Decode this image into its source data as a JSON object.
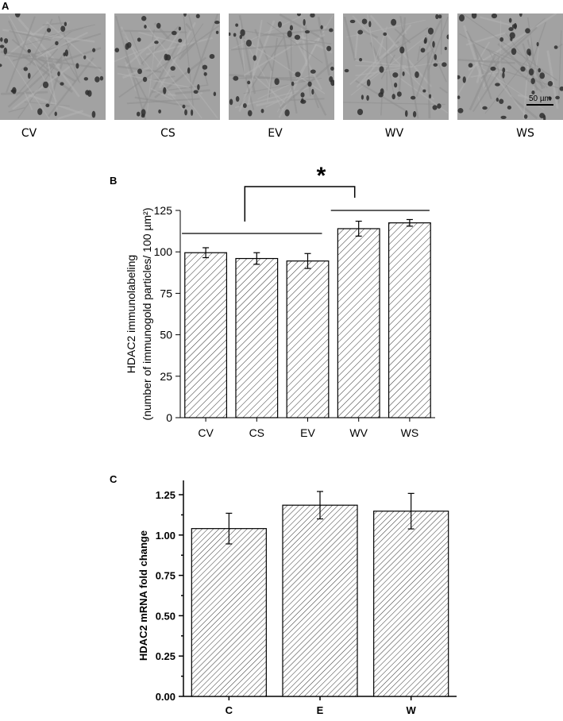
{
  "panels": {
    "a": {
      "letter": "A",
      "images": [
        {
          "label": "CV"
        },
        {
          "label": "CS"
        },
        {
          "label": "EV"
        },
        {
          "label": "WV"
        },
        {
          "label": "WS"
        }
      ],
      "scale_bar": "50 µm"
    },
    "b": {
      "letter": "B",
      "significance": "*"
    },
    "c": {
      "letter": "C"
    }
  },
  "chart_data": [
    {
      "type": "bar",
      "categories": [
        "CV",
        "CS",
        "EV",
        "WV",
        "WS"
      ],
      "values": [
        99.5,
        96,
        94.5,
        114,
        117.5
      ],
      "errors": [
        3,
        3.5,
        4.5,
        4.5,
        2
      ],
      "ylabel": "HDAC2 immunolabeling",
      "ylabel2": "(number of immunogold particles/ 100 µm²)",
      "ylim": [
        0,
        125
      ],
      "yticks": [
        "0",
        "25",
        "50",
        "75",
        "100",
        "125"
      ],
      "yticks_values": [
        0,
        25,
        50,
        75,
        100,
        125
      ],
      "group_lines": [
        [
          "CV",
          "EV"
        ],
        [
          "WV",
          "WS"
        ]
      ],
      "bar_fill": "hatched"
    },
    {
      "type": "bar",
      "categories": [
        "C",
        "E",
        "W"
      ],
      "values": [
        1.04,
        1.185,
        1.148
      ],
      "errors": [
        0.095,
        0.085,
        0.11
      ],
      "ylabel": "HDAC2 mRNA fold change",
      "ylim": [
        0,
        1.25
      ],
      "yticks": [
        "0.00",
        "0.25",
        "0.50",
        "0.75",
        "1.00",
        "1.25"
      ],
      "yticks_values": [
        0,
        0.25,
        0.5,
        0.75,
        1.0,
        1.25
      ],
      "bar_fill": "hatched"
    }
  ]
}
